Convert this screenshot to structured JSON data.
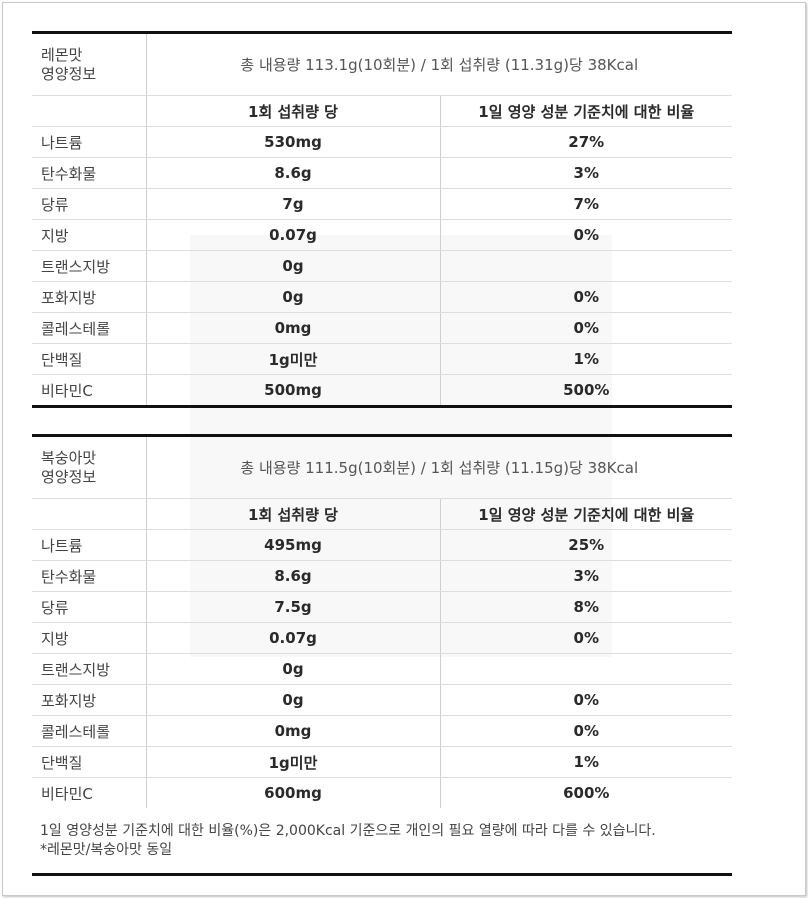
{
  "lemon": {
    "name": "레몬맛 영양정보",
    "name_line1": "레몬맛",
    "name_line2": "영양정보",
    "total": "총 내용량 113.1g(10회분) / 1회 섭취량 (11.31g)당 38Kcal",
    "header_per": "1회 섭취량 당",
    "header_pct": "1일 영양 성분 기준치에 대한 비율",
    "rows": [
      {
        "name": "나트륨",
        "amount": "530mg",
        "pct": "27%"
      },
      {
        "name": "탄수화물",
        "amount": "8.6g",
        "pct": "3%"
      },
      {
        "name": "당류",
        "amount": "7g",
        "pct": "7%"
      },
      {
        "name": "지방",
        "amount": "0.07g",
        "pct": "0%"
      },
      {
        "name": "트랜스지방",
        "amount": "0g",
        "pct": ""
      },
      {
        "name": "포화지방",
        "amount": "0g",
        "pct": "0%"
      },
      {
        "name": "콜레스테롤",
        "amount": "0mg",
        "pct": "0%"
      },
      {
        "name": "단백질",
        "amount": "1g미만",
        "pct": "1%"
      },
      {
        "name": "비타민C",
        "amount": "500mg",
        "pct": "500%"
      }
    ]
  },
  "peach": {
    "name": "복숭아맛 영양정보",
    "name_line1": "복숭아맛",
    "name_line2": "영양정보",
    "total": "총 내용량 111.5g(10회분) / 1회 섭취량 (11.15g)당 38Kcal",
    "header_per": "1회 섭취량 당",
    "header_pct": "1일 영양 성분 기준치에 대한 비율",
    "rows": [
      {
        "name": "나트륨",
        "amount": "495mg",
        "pct": "25%"
      },
      {
        "name": "탄수화물",
        "amount": "8.6g",
        "pct": "3%"
      },
      {
        "name": "당류",
        "amount": "7.5g",
        "pct": "8%"
      },
      {
        "name": "지방",
        "amount": "0.07g",
        "pct": "0%"
      },
      {
        "name": "트랜스지방",
        "amount": "0g",
        "pct": ""
      },
      {
        "name": "포화지방",
        "amount": "0g",
        "pct": "0%"
      },
      {
        "name": "콜레스테롤",
        "amount": "0mg",
        "pct": "0%"
      },
      {
        "name": "단백질",
        "amount": "1g미만",
        "pct": "1%"
      },
      {
        "name": "비타민C",
        "amount": "600mg",
        "pct": "600%"
      }
    ]
  },
  "footnote": {
    "line1": "1일 영양성분 기준치에 대한 비율(%)은 2,000Kcal 기준으로 개인의 필요 열량에 따라 다를 수 있습니다.",
    "line2": "*레몬맛/복숭아맛 동일"
  },
  "colors": {
    "rule": "#111111",
    "divider": "#dddddd",
    "text": "#333333"
  }
}
